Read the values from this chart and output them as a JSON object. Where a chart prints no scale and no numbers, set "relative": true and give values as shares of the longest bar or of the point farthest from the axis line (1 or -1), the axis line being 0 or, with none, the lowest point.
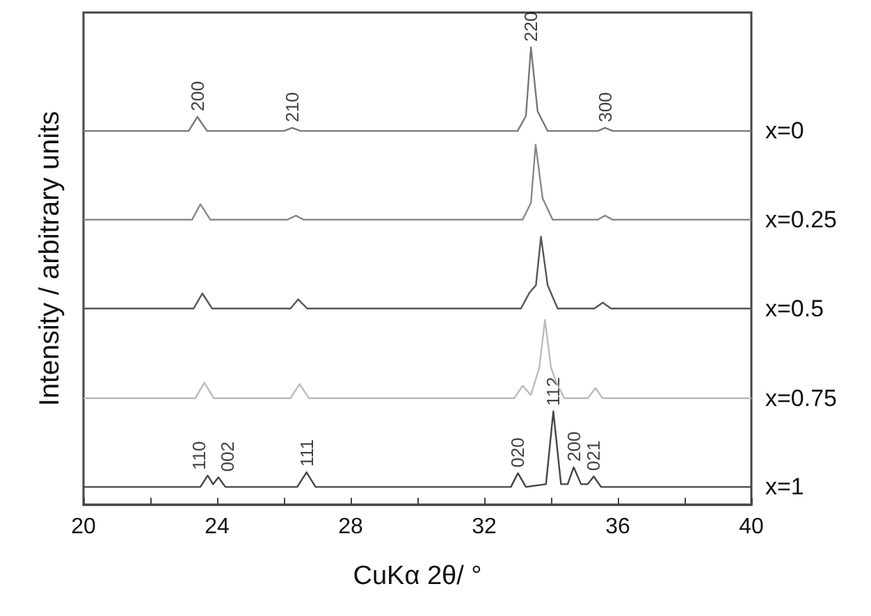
{
  "chart_data": {
    "type": "line",
    "relative": true,
    "xlabel": "CuKα 2θ/ °",
    "ylabel": "Intensity / arbitrary units",
    "xlim": [
      20,
      40
    ],
    "xticks": [
      20,
      {
        "value": 22,
        "label": null
      },
      24,
      {
        "value": 26,
        "label": null
      },
      28,
      {
        "value": 30,
        "label": null
      },
      32,
      {
        "value": 34,
        "label": null
      },
      36,
      {
        "value": 38,
        "label": null
      },
      40
    ],
    "marker": "none",
    "series": [
      {
        "name": "x=0",
        "color": "#777777",
        "x": [
          20,
          23.15,
          23.41,
          23.7,
          26.0,
          26.25,
          26.5,
          33.0,
          33.25,
          33.4,
          33.6,
          33.9,
          35.4,
          35.62,
          35.85,
          40
        ],
        "values": [
          0.817,
          0.817,
          0.848,
          0.817,
          0.817,
          0.824,
          0.817,
          0.817,
          0.85,
          1.0,
          0.86,
          0.817,
          0.817,
          0.824,
          0.817,
          0.817
        ]
      },
      {
        "name": "x=0.25",
        "color": "#888888",
        "x": [
          20,
          23.25,
          23.5,
          23.8,
          26.1,
          26.36,
          26.6,
          33.15,
          33.4,
          33.54,
          33.75,
          34.05,
          35.4,
          35.62,
          35.85,
          40
        ],
        "values": [
          0.623,
          0.623,
          0.657,
          0.623,
          0.623,
          0.632,
          0.623,
          0.623,
          0.66,
          0.787,
          0.67,
          0.623,
          0.623,
          0.632,
          0.623,
          0.623
        ]
      },
      {
        "name": "x=0.5",
        "color": "#555555",
        "x": [
          20,
          23.3,
          23.56,
          23.85,
          26.2,
          26.43,
          26.7,
          33.1,
          33.36,
          33.55,
          33.7,
          33.9,
          34.2,
          35.3,
          35.55,
          35.8,
          40
        ],
        "values": [
          0.429,
          0.429,
          0.462,
          0.429,
          0.429,
          0.449,
          0.429,
          0.429,
          0.464,
          0.48,
          0.586,
          0.48,
          0.429,
          0.429,
          0.442,
          0.429,
          0.429
        ]
      },
      {
        "name": "x=0.75",
        "color": "#bbbbbb",
        "x": [
          20,
          23.35,
          23.62,
          23.9,
          26.2,
          26.47,
          26.75,
          32.9,
          33.15,
          33.4,
          33.65,
          33.82,
          34.0,
          34.16,
          34.4,
          35.1,
          35.33,
          35.55,
          40
        ],
        "values": [
          0.233,
          0.233,
          0.267,
          0.233,
          0.233,
          0.264,
          0.233,
          0.233,
          0.26,
          0.24,
          0.3,
          0.404,
          0.3,
          0.267,
          0.233,
          0.233,
          0.255,
          0.233,
          0.233
        ]
      },
      {
        "name": "x=1",
        "color": "#444444",
        "x": [
          20,
          23.5,
          23.72,
          23.88,
          24.04,
          24.25,
          26.4,
          26.68,
          26.95,
          32.8,
          33.01,
          33.25,
          33.85,
          34.07,
          34.3,
          34.5,
          34.68,
          34.9,
          35.1,
          35.28,
          35.5,
          40
        ],
        "values": [
          0.039,
          0.039,
          0.064,
          0.045,
          0.06,
          0.039,
          0.039,
          0.071,
          0.039,
          0.039,
          0.069,
          0.039,
          0.045,
          0.204,
          0.045,
          0.045,
          0.082,
          0.045,
          0.045,
          0.062,
          0.039,
          0.039
        ]
      }
    ],
    "annotations": [
      {
        "text": "200",
        "x": 23.41,
        "y": 0.848
      },
      {
        "text": "210",
        "x": 26.25,
        "y": 0.824
      },
      {
        "text": "220",
        "x": 33.4,
        "y": 1.0
      },
      {
        "text": "300",
        "x": 35.62,
        "y": 0.824
      },
      {
        "text": "110",
        "x": 23.72,
        "y": 0.064
      },
      {
        "text": "002",
        "x": 24.04,
        "y": 0.06
      },
      {
        "text": "111",
        "x": 26.68,
        "y": 0.071
      },
      {
        "text": "020",
        "x": 33.01,
        "y": 0.069
      },
      {
        "text": "112",
        "x": 34.07,
        "y": 0.204
      },
      {
        "text": "200",
        "x": 34.68,
        "y": 0.082
      },
      {
        "text": "021",
        "x": 35.28,
        "y": 0.062
      }
    ]
  }
}
